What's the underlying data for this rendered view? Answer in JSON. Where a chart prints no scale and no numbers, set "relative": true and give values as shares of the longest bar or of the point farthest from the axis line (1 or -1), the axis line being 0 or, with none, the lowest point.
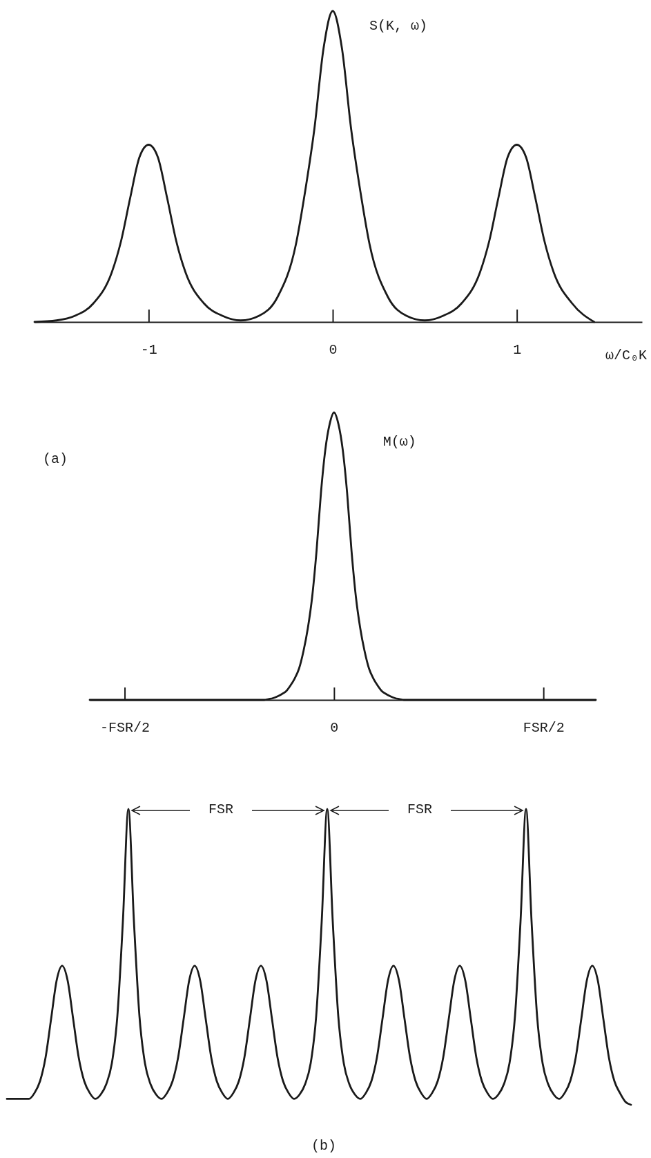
{
  "chart_data": [
    {
      "type": "line",
      "relative": true,
      "xlabel": "ω/C₀K",
      "xlim": [
        -1.62,
        1.68
      ],
      "xticks": [
        -1,
        0,
        1
      ],
      "marker": "none",
      "line_style": "solid",
      "series": [
        {
          "name": "S(K, ω)",
          "color": "#1a1a1a",
          "x": [
            -1.62,
            -1.5,
            -1.4,
            -1.3,
            -1.2,
            -1.15,
            -1.1,
            -1.05,
            -1,
            -0.95,
            -0.9,
            -0.85,
            -0.8,
            -0.7,
            -0.6,
            -0.5,
            -0.4,
            -0.3,
            -0.2,
            -0.15,
            -0.1,
            -0.05,
            0,
            0.05,
            0.1,
            0.15,
            0.2,
            0.3,
            0.4,
            0.5,
            0.6,
            0.7,
            0.8,
            0.85,
            0.9,
            0.95,
            1,
            1.05,
            1.1,
            1.15,
            1.2,
            1.3,
            1.42
          ],
          "values": [
            0,
            0.005,
            0.02,
            0.06,
            0.16,
            0.26,
            0.4,
            0.53,
            0.57,
            0.53,
            0.4,
            0.26,
            0.16,
            0.06,
            0.02,
            0.005,
            0.02,
            0.08,
            0.25,
            0.42,
            0.62,
            0.88,
            1,
            0.88,
            0.62,
            0.42,
            0.25,
            0.08,
            0.02,
            0.005,
            0.02,
            0.06,
            0.16,
            0.26,
            0.4,
            0.53,
            0.57,
            0.53,
            0.4,
            0.26,
            0.16,
            0.06,
            0
          ]
        }
      ]
    },
    {
      "type": "line",
      "relative": true,
      "marker": "none",
      "line_style": "solid",
      "annotations": [
        "(a)"
      ],
      "categories": [
        null,
        null,
        null,
        null,
        null,
        null,
        null,
        null,
        "-FSR/2",
        null,
        null,
        null,
        null,
        null,
        null,
        null,
        null,
        null,
        null,
        null,
        null,
        null,
        null,
        null,
        null,
        null,
        null,
        null,
        null,
        null,
        null,
        null,
        null,
        null,
        null,
        null,
        null,
        null,
        null,
        null,
        null,
        null,
        null,
        null,
        null,
        null,
        null,
        null,
        null,
        null,
        null,
        null,
        null,
        null,
        null,
        null,
        "0",
        null,
        null,
        null,
        null,
        null,
        null,
        null,
        null,
        null,
        null,
        null,
        null,
        null,
        null,
        null,
        null,
        null,
        null,
        null,
        null,
        null,
        null,
        null,
        null,
        null,
        null,
        null,
        null,
        null,
        null,
        null,
        null,
        null,
        null,
        null,
        null,
        null,
        null,
        null,
        null,
        null,
        null,
        null,
        null,
        null,
        null,
        null,
        "FSR/2",
        null,
        null,
        null,
        null,
        null,
        null,
        null,
        null,
        null,
        null,
        null,
        null
      ],
      "series": [
        {
          "name": "M(ω)",
          "color": "#1a1a1a",
          "values": [
            0,
            0,
            0,
            0,
            0,
            0,
            0,
            0,
            0,
            0,
            0,
            0,
            0,
            0,
            0,
            0,
            0,
            0,
            0,
            0,
            0,
            0,
            0,
            0,
            0,
            0,
            0,
            0,
            0,
            0,
            0,
            0,
            0,
            0,
            0,
            0,
            0,
            0,
            0,
            0,
            0,
            0.003,
            0.006,
            0.012,
            0.02,
            0.03,
            0.05,
            0.075,
            0.11,
            0.17,
            0.25,
            0.36,
            0.52,
            0.72,
            0.87,
            0.96,
            1,
            0.96,
            0.87,
            0.72,
            0.52,
            0.36,
            0.25,
            0.17,
            0.11,
            0.075,
            0.05,
            0.03,
            0.02,
            0.012,
            0.006,
            0.003,
            0,
            0,
            0,
            0,
            0,
            0,
            0,
            0,
            0,
            0,
            0,
            0,
            0,
            0,
            0,
            0,
            0,
            0,
            0,
            0,
            0,
            0,
            0,
            0,
            0,
            0,
            0,
            0,
            0,
            0,
            0,
            0,
            0,
            0,
            0,
            0,
            0,
            0,
            0,
            0,
            0,
            0,
            0,
            0,
            0
          ]
        }
      ]
    },
    {
      "type": "line",
      "relative": true,
      "marker": "none",
      "line_style": "solid",
      "annotations": [
        "FSR",
        "FSR",
        "(b)"
      ],
      "categories": [
        null,
        null,
        null,
        null,
        null,
        null,
        null,
        null,
        null,
        null,
        null,
        null,
        null,
        null,
        null,
        null,
        null,
        null,
        null,
        null,
        null,
        null,
        null,
        null,
        null,
        null,
        null,
        null,
        null,
        null,
        null,
        null,
        null,
        null,
        null,
        null,
        null,
        null,
        null,
        null,
        null,
        null,
        null,
        null,
        null,
        null,
        null,
        null,
        null,
        null,
        null,
        null,
        null,
        null,
        null,
        null,
        null,
        null,
        null,
        null,
        null,
        null,
        null,
        null,
        null,
        null,
        null,
        null,
        null,
        null,
        null,
        null,
        null,
        null,
        null,
        null,
        null,
        null,
        null,
        null,
        null,
        null,
        null,
        null,
        null,
        null,
        null,
        null,
        null,
        null,
        null,
        null,
        null,
        null,
        null,
        null,
        null,
        null,
        null,
        null,
        null,
        null,
        null,
        null,
        null,
        null,
        null,
        null,
        null,
        null,
        null,
        null,
        null,
        null
      ],
      "series": [
        {
          "color": "#1a1a1a",
          "values": [
            0.02,
            0.02,
            0.02,
            0.02,
            0.02,
            0.04,
            0.08,
            0.16,
            0.29,
            0.42,
            0.47,
            0.42,
            0.29,
            0.16,
            0.08,
            0.04,
            0.02,
            0.035,
            0.07,
            0.14,
            0.3,
            0.62,
            1,
            0.62,
            0.3,
            0.14,
            0.07,
            0.035,
            0.02,
            0.04,
            0.08,
            0.16,
            0.29,
            0.42,
            0.47,
            0.42,
            0.29,
            0.16,
            0.08,
            0.04,
            0.02,
            0.04,
            0.08,
            0.16,
            0.29,
            0.42,
            0.47,
            0.42,
            0.29,
            0.16,
            0.08,
            0.04,
            0.02,
            0.035,
            0.07,
            0.14,
            0.3,
            0.62,
            1,
            0.62,
            0.3,
            0.14,
            0.07,
            0.035,
            0.02,
            0.04,
            0.08,
            0.16,
            0.29,
            0.42,
            0.47,
            0.42,
            0.29,
            0.16,
            0.08,
            0.04,
            0.02,
            0.04,
            0.08,
            0.16,
            0.29,
            0.42,
            0.47,
            0.42,
            0.29,
            0.16,
            0.08,
            0.04,
            0.02,
            0.035,
            0.07,
            0.14,
            0.3,
            0.62,
            1,
            0.62,
            0.3,
            0.14,
            0.07,
            0.035,
            0.02,
            0.04,
            0.08,
            0.16,
            0.29,
            0.42,
            0.47,
            0.42,
            0.29,
            0.16,
            0.08,
            0.04,
            0.01,
            0
          ]
        }
      ]
    }
  ]
}
